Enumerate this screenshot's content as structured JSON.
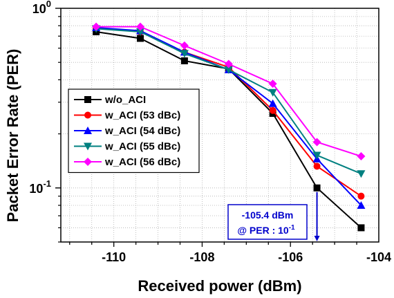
{
  "chart_data": {
    "type": "line",
    "title": "",
    "xlabel": "Received power (dBm)",
    "ylabel": "Packet Error Rate (PER)",
    "xlim": [
      -111.2,
      -104
    ],
    "ylim": [
      0.05,
      1
    ],
    "yscale": "log",
    "x_ticks": [
      -110,
      -108,
      -106,
      -104
    ],
    "x_tick_labels": [
      "-110",
      "-108",
      "-106",
      "-104"
    ],
    "y_tick_labels": [
      {
        "value": 1,
        "base": "10",
        "exp": "0"
      },
      {
        "value": 0.1,
        "base": "10",
        "exp": "-1"
      }
    ],
    "grid": true,
    "legend_position": "center-left",
    "series": [
      {
        "name": "w/o_ACI",
        "color": "#000000",
        "marker": "square",
        "x": [
          -110.4,
          -109.4,
          -108.4,
          -107.4,
          -106.4,
          -105.4,
          -104.4
        ],
        "y": [
          0.74,
          0.68,
          0.51,
          0.46,
          0.26,
          0.1,
          0.06
        ]
      },
      {
        "name": "w_ACI (53 dBc)",
        "color": "#ff0000",
        "marker": "circle",
        "x": [
          -110.4,
          -109.4,
          -108.4,
          -107.4,
          -106.4,
          -105.4,
          -104.4
        ],
        "y": [
          0.78,
          0.74,
          0.57,
          0.47,
          0.27,
          0.132,
          0.09
        ]
      },
      {
        "name": "w_ACI (54 dBc)",
        "color": "#0000ff",
        "marker": "triangle-up",
        "x": [
          -110.4,
          -109.4,
          -108.4,
          -107.4,
          -106.4,
          -105.4,
          -104.4
        ],
        "y": [
          0.78,
          0.75,
          0.57,
          0.455,
          0.295,
          0.145,
          0.08
        ]
      },
      {
        "name": "w_ACI (55 dBc)",
        "color": "#008080",
        "marker": "triangle-down",
        "x": [
          -110.4,
          -109.4,
          -108.4,
          -107.4,
          -106.4,
          -105.4,
          -104.4
        ],
        "y": [
          0.77,
          0.74,
          0.56,
          0.455,
          0.34,
          0.152,
          0.12
        ]
      },
      {
        "name": "w_ACI (56 dBc)",
        "color": "#ff00ff",
        "marker": "diamond",
        "x": [
          -110.4,
          -109.4,
          -108.4,
          -107.4,
          -106.4,
          -105.4,
          -104.4
        ],
        "y": [
          0.79,
          0.79,
          0.62,
          0.49,
          0.38,
          0.18,
          0.15
        ]
      }
    ],
    "annotation": {
      "line1": "-105.4 dBm",
      "line2_prefix": "@ PER : 10",
      "line2_exp": "-1",
      "arrow_x": -105.4,
      "arrow_from_y": 0.1,
      "arrow_to_y": 0.05,
      "color": "#0000cc"
    }
  }
}
